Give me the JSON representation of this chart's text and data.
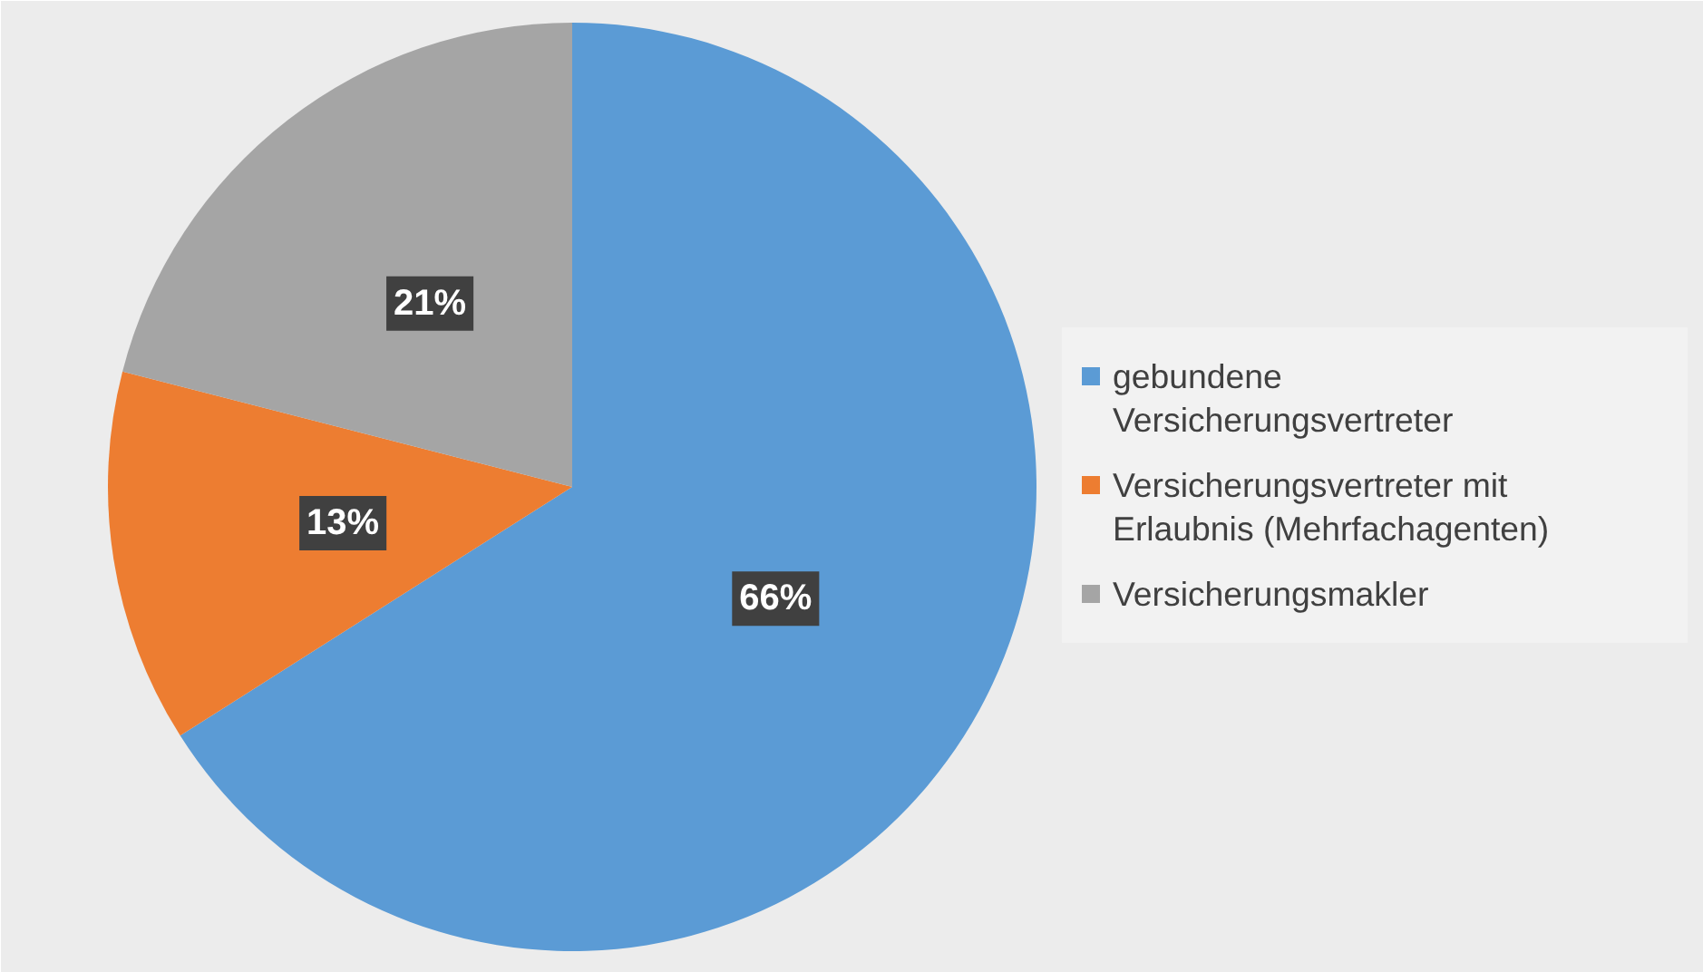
{
  "chart_data": {
    "type": "pie",
    "categories": [
      "gebundene Versicherungsvertreter",
      "Versicherungsvertreter mit Erlaubnis (Mehrfachagenten)",
      "Versicherungsmakler"
    ],
    "values": [
      66,
      13,
      21
    ],
    "colors": [
      "#5b9bd5",
      "#ed7d31",
      "#a5a5a5"
    ],
    "value_labels": [
      "66%",
      "13%",
      "21%"
    ],
    "legend": "right"
  }
}
